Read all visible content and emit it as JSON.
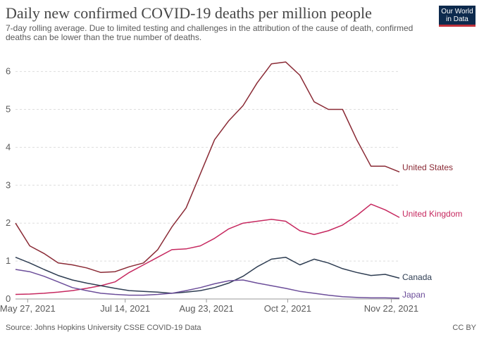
{
  "header": {
    "title": "Daily new confirmed COVID-19 deaths per million people",
    "subtitle": "7-day rolling average. Due to limited testing and challenges in the attribution of the cause of death, confirmed deaths can be lower than the true number of deaths.",
    "logo_line1": "Our World",
    "logo_line2": "in Data"
  },
  "footer": {
    "source": "Source: Johns Hopkins University CSSE COVID-19 Data",
    "license": "CC BY"
  },
  "chart_data": {
    "type": "line",
    "title": "Daily new confirmed COVID-19 deaths per million people",
    "xlabel": "",
    "ylabel": "",
    "x_start": "2021-05-27",
    "x_end": "2021-11-28",
    "x_ticks": [
      "May 27, 2021",
      "Jul 14, 2021",
      "Aug 23, 2021",
      "Oct 2, 2021",
      "Nov 22, 2021"
    ],
    "y_ticks": [
      0,
      1,
      2,
      3,
      4,
      5,
      6
    ],
    "ylim": [
      0,
      6.4
    ],
    "grid": "horizontal dotted",
    "legend": "labels at line ends",
    "x": [
      "2021-05-21",
      "2021-05-28",
      "2021-06-04",
      "2021-06-11",
      "2021-06-18",
      "2021-06-25",
      "2021-07-02",
      "2021-07-09",
      "2021-07-16",
      "2021-07-23",
      "2021-07-30",
      "2021-08-06",
      "2021-08-13",
      "2021-08-20",
      "2021-08-27",
      "2021-09-03",
      "2021-09-10",
      "2021-09-17",
      "2021-09-24",
      "2021-10-01",
      "2021-10-08",
      "2021-10-15",
      "2021-10-22",
      "2021-10-29",
      "2021-11-05",
      "2021-11-12",
      "2021-11-19",
      "2021-11-26"
    ],
    "series": [
      {
        "name": "United States",
        "color": "#8a2a35",
        "values": [
          2.0,
          1.4,
          1.2,
          0.95,
          0.9,
          0.82,
          0.7,
          0.72,
          0.85,
          0.95,
          1.3,
          1.9,
          2.4,
          3.3,
          4.2,
          4.7,
          5.1,
          5.7,
          6.2,
          6.25,
          5.9,
          5.2,
          5.0,
          5.0,
          4.2,
          3.5,
          3.5,
          3.35
        ]
      },
      {
        "name": "United Kingdom",
        "color": "#c6285f",
        "values": [
          0.12,
          0.13,
          0.15,
          0.18,
          0.22,
          0.28,
          0.35,
          0.45,
          0.7,
          0.9,
          1.1,
          1.3,
          1.32,
          1.4,
          1.6,
          1.85,
          2.0,
          2.05,
          2.1,
          2.05,
          1.8,
          1.7,
          1.8,
          1.95,
          2.2,
          2.5,
          2.35,
          2.15
        ]
      },
      {
        "name": "Canada",
        "color": "#2e3d52",
        "values": [
          1.1,
          0.95,
          0.78,
          0.62,
          0.5,
          0.42,
          0.35,
          0.28,
          0.22,
          0.2,
          0.18,
          0.15,
          0.18,
          0.22,
          0.3,
          0.42,
          0.6,
          0.85,
          1.05,
          1.1,
          0.9,
          1.05,
          0.95,
          0.8,
          0.7,
          0.62,
          0.65,
          0.55
        ]
      },
      {
        "name": "Japan",
        "color": "#6c4e9a",
        "values": [
          0.78,
          0.72,
          0.6,
          0.45,
          0.3,
          0.22,
          0.15,
          0.12,
          0.1,
          0.1,
          0.12,
          0.15,
          0.22,
          0.3,
          0.4,
          0.48,
          0.5,
          0.42,
          0.35,
          0.28,
          0.2,
          0.15,
          0.1,
          0.06,
          0.04,
          0.03,
          0.03,
          0.02
        ]
      }
    ]
  }
}
